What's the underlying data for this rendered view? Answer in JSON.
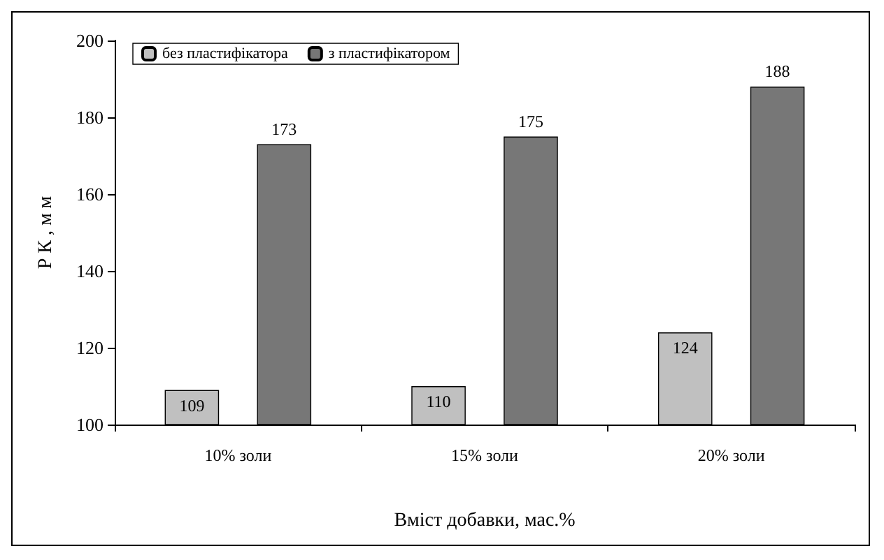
{
  "chart_data": {
    "type": "bar",
    "categories": [
      "10% золи",
      "15% золи",
      "20% золи"
    ],
    "series": [
      {
        "name": "без пластифікатора",
        "color": "#c0c0c0",
        "values": [
          109,
          110,
          124
        ]
      },
      {
        "name": "з пластифікатором",
        "color": "#777777",
        "values": [
          173,
          175,
          188
        ]
      }
    ],
    "ylim": [
      100,
      200
    ],
    "yticks": [
      100,
      120,
      140,
      160,
      180,
      200
    ],
    "ylabel": "Р К , м м",
    "xlabel": "Вміст добавки, мас.%",
    "legend": "top left",
    "grid": false,
    "data_labels": true
  }
}
